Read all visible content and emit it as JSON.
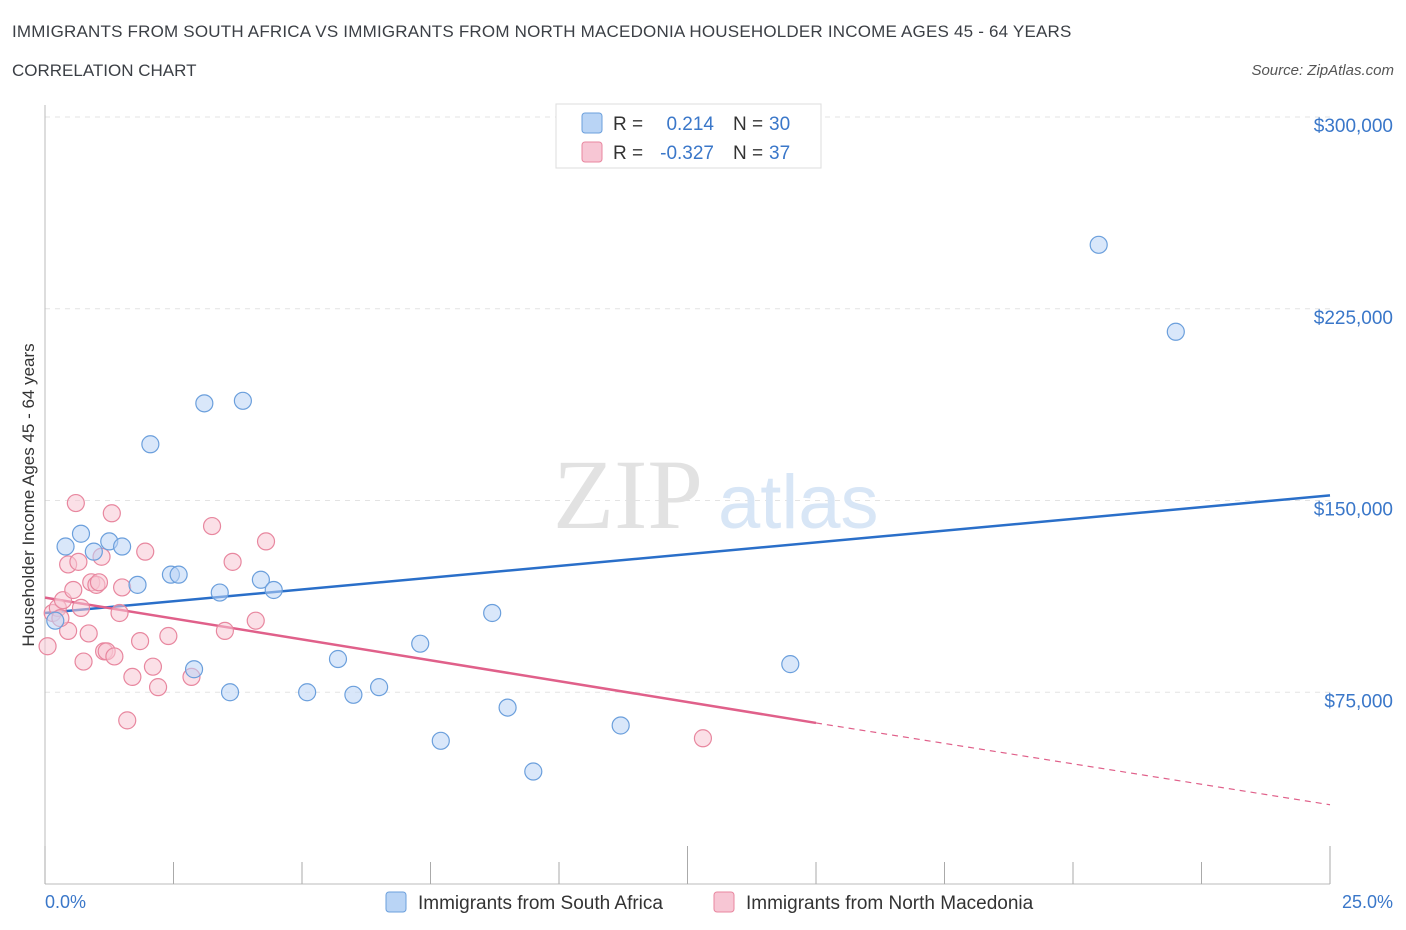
{
  "title": "IMMIGRANTS FROM SOUTH AFRICA VS IMMIGRANTS FROM NORTH MACEDONIA HOUSEHOLDER INCOME AGES 45 - 64 YEARS",
  "subtitle": "CORRELATION CHART",
  "source": "Source: ZipAtlas.com",
  "watermark": {
    "zip": "ZIP",
    "atlas": "atlas"
  },
  "colors": {
    "blue_fill": "#b9d4f5",
    "blue_stroke": "#6b9fdc",
    "blue_line": "#2a6fc9",
    "pink_fill": "#f7c6d4",
    "pink_stroke": "#e8879f",
    "pink_line": "#e0608a",
    "tick_text": "#3a77c9"
  },
  "legend": {
    "r_label": "R =",
    "n_label": "N =",
    "series": [
      {
        "name": "Immigrants from South Africa",
        "r": "0.214",
        "n": "30",
        "color": "blue"
      },
      {
        "name": "Immigrants from North Macedonia",
        "r": "-0.327",
        "n": "37",
        "color": "pink"
      }
    ]
  },
  "chart_data": {
    "type": "scatter",
    "xlabel": "",
    "ylabel": "Householder Income Ages 45 - 64 years",
    "xlim": [
      0,
      25
    ],
    "ylim": [
      0,
      300000
    ],
    "x_tick_labels": [
      {
        "value": 0,
        "label": "0.0%"
      },
      {
        "value": 25,
        "label": "25.0%"
      }
    ],
    "y_tick_labels": [
      {
        "value": 75000,
        "label": "$75,000"
      },
      {
        "value": 150000,
        "label": "$150,000"
      },
      {
        "value": 225000,
        "label": "$225,000"
      },
      {
        "value": 300000,
        "label": "$300,000"
      }
    ],
    "grid": true,
    "series": [
      {
        "name": "Immigrants from South Africa",
        "points": [
          [
            0.2,
            103000
          ],
          [
            0.4,
            132000
          ],
          [
            0.7,
            137000
          ],
          [
            0.95,
            130000
          ],
          [
            1.25,
            134000
          ],
          [
            1.5,
            132000
          ],
          [
            1.8,
            117000
          ],
          [
            2.05,
            172000
          ],
          [
            2.45,
            121000
          ],
          [
            2.6,
            121000
          ],
          [
            2.9,
            84000
          ],
          [
            3.1,
            188000
          ],
          [
            3.4,
            114000
          ],
          [
            3.6,
            75000
          ],
          [
            3.85,
            189000
          ],
          [
            4.2,
            119000
          ],
          [
            4.45,
            115000
          ],
          [
            5.1,
            75000
          ],
          [
            5.7,
            88000
          ],
          [
            6.0,
            74000
          ],
          [
            6.5,
            77000
          ],
          [
            7.3,
            94000
          ],
          [
            7.7,
            56000
          ],
          [
            8.7,
            106000
          ],
          [
            9.0,
            69000
          ],
          [
            9.5,
            44000
          ],
          [
            11.2,
            62000
          ],
          [
            14.5,
            86000
          ],
          [
            20.5,
            250000
          ],
          [
            22.0,
            216000
          ]
        ],
        "trend": {
          "x": [
            0,
            25
          ],
          "y": [
            106000,
            152000
          ]
        }
      },
      {
        "name": "Immigrants from North Macedonia",
        "points": [
          [
            0.05,
            93000
          ],
          [
            0.15,
            106000
          ],
          [
            0.25,
            108000
          ],
          [
            0.35,
            111000
          ],
          [
            0.45,
            99000
          ],
          [
            0.45,
            125000
          ],
          [
            0.55,
            115000
          ],
          [
            0.6,
            149000
          ],
          [
            0.65,
            126000
          ],
          [
            0.7,
            108000
          ],
          [
            0.75,
            87000
          ],
          [
            0.85,
            98000
          ],
          [
            0.9,
            118000
          ],
          [
            1.0,
            117000
          ],
          [
            1.05,
            118000
          ],
          [
            1.1,
            128000
          ],
          [
            1.15,
            91000
          ],
          [
            1.2,
            91000
          ],
          [
            1.3,
            145000
          ],
          [
            1.35,
            89000
          ],
          [
            1.45,
            106000
          ],
          [
            1.5,
            116000
          ],
          [
            1.6,
            64000
          ],
          [
            1.7,
            81000
          ],
          [
            1.85,
            95000
          ],
          [
            1.95,
            130000
          ],
          [
            2.1,
            85000
          ],
          [
            2.2,
            77000
          ],
          [
            2.4,
            97000
          ],
          [
            2.85,
            81000
          ],
          [
            3.25,
            140000
          ],
          [
            3.5,
            99000
          ],
          [
            3.65,
            126000
          ],
          [
            4.1,
            103000
          ],
          [
            4.3,
            134000
          ],
          [
            12.8,
            57000
          ],
          [
            0.3,
            104000
          ]
        ],
        "trend": {
          "x": [
            0,
            15
          ],
          "y": [
            112000,
            63000
          ],
          "dashed_to": [
            25,
            31000
          ]
        }
      }
    ]
  }
}
